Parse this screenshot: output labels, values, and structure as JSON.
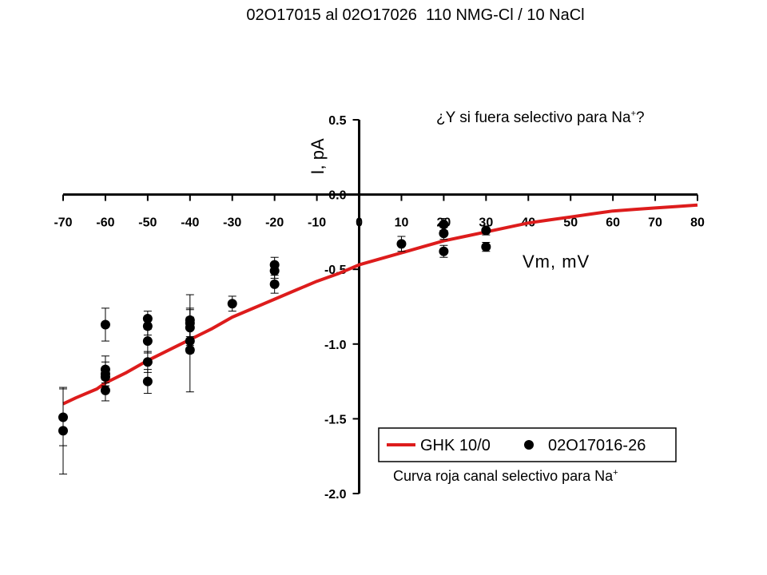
{
  "title": "02O17015 al 02O17026  110 NMG-Cl / 10 NaCl",
  "annotations": {
    "question": {
      "text": "¿Y si fuera selectivo para Na",
      "sup": "+",
      "suffix": "?"
    },
    "caption": {
      "text": "Curva roja canal selectivo para Na",
      "sup": "+"
    }
  },
  "chart_data": {
    "type": "scatter",
    "xlabel": "Vm, mV",
    "ylabel": "I, pA",
    "xlim": [
      -70,
      80
    ],
    "ylim": [
      -2.0,
      0.5
    ],
    "x_ticks": [
      -70,
      -60,
      -50,
      -40,
      -30,
      -20,
      -10,
      0,
      10,
      20,
      30,
      40,
      50,
      60,
      70,
      80
    ],
    "x_tick_labels": [
      "-70",
      "-60",
      "-50",
      "-40",
      "-30",
      "-20",
      "-10",
      "0",
      "10",
      "20",
      "30",
      "40",
      "50",
      "60",
      "70",
      "80"
    ],
    "y_ticks": [
      0.5,
      0.0,
      -0.5,
      -1.0,
      -1.5,
      -2.0
    ],
    "y_tick_labels": [
      "0.5",
      "0.0",
      "-0.5",
      "-1.0",
      "-1.5",
      "-2.0"
    ],
    "legend_position": "bottom-right",
    "series": [
      {
        "name": "GHK 10/0",
        "kind": "line",
        "color": "#dd1c1c",
        "points": [
          [
            -70,
            -1.4
          ],
          [
            -67,
            -1.36
          ],
          [
            -62,
            -1.3
          ],
          [
            -60,
            -1.26
          ],
          [
            -55,
            -1.19
          ],
          [
            -50,
            -1.11
          ],
          [
            -45,
            -1.04
          ],
          [
            -40,
            -0.97
          ],
          [
            -35,
            -0.9
          ],
          [
            -30,
            -0.82
          ],
          [
            -25,
            -0.76
          ],
          [
            -20,
            -0.7
          ],
          [
            -15,
            -0.64
          ],
          [
            -10,
            -0.58
          ],
          [
            -5,
            -0.53
          ],
          [
            0,
            -0.47
          ],
          [
            5,
            -0.43
          ],
          [
            10,
            -0.39
          ],
          [
            15,
            -0.35
          ],
          [
            20,
            -0.31
          ],
          [
            25,
            -0.28
          ],
          [
            30,
            -0.25
          ],
          [
            35,
            -0.22
          ],
          [
            40,
            -0.19
          ],
          [
            45,
            -0.17
          ],
          [
            50,
            -0.15
          ],
          [
            55,
            -0.13
          ],
          [
            60,
            -0.11
          ],
          [
            65,
            -0.1
          ],
          [
            70,
            -0.09
          ],
          [
            75,
            -0.08
          ],
          [
            80,
            -0.07
          ]
        ]
      },
      {
        "name": "02O17016-26",
        "kind": "scatter",
        "color": "#000000",
        "points": [
          {
            "x": -70,
            "y": -1.49,
            "err": 0.19
          },
          {
            "x": -70,
            "y": -1.58,
            "err": 0.29
          },
          {
            "x": -60,
            "y": -0.87,
            "err": 0.11
          },
          {
            "x": -60,
            "y": -1.17,
            "err": 0.09
          },
          {
            "x": -60,
            "y": -1.2,
            "err": 0.08
          },
          {
            "x": -60,
            "y": -1.22,
            "err": 0.06
          },
          {
            "x": -60,
            "y": -1.31,
            "err": 0.07
          },
          {
            "x": -50,
            "y": -0.83,
            "err": 0.05
          },
          {
            "x": -50,
            "y": -0.88,
            "err": 0.06
          },
          {
            "x": -50,
            "y": -0.98,
            "err": 0.08
          },
          {
            "x": -50,
            "y": -1.12,
            "err": 0.07
          },
          {
            "x": -50,
            "y": -1.25,
            "err": 0.08
          },
          {
            "x": -40,
            "y": -0.84,
            "err": 0.17
          },
          {
            "x": -40,
            "y": -0.86,
            "err": 0.09
          },
          {
            "x": -40,
            "y": -0.89,
            "err": 0.07
          },
          {
            "x": -40,
            "y": -0.98,
            "err": 0.08
          },
          {
            "x": -40,
            "y": -1.04,
            "err": 0.28
          },
          {
            "x": -30,
            "y": -0.73,
            "err": 0.05
          },
          {
            "x": -20,
            "y": -0.47,
            "err": 0.05
          },
          {
            "x": -20,
            "y": -0.51,
            "err": 0.05
          },
          {
            "x": -20,
            "y": -0.6,
            "err": 0.06
          },
          {
            "x": 10,
            "y": -0.33,
            "err": 0.05
          },
          {
            "x": 20,
            "y": -0.2,
            "err": 0.04
          },
          {
            "x": 20,
            "y": -0.26,
            "err": 0.04
          },
          {
            "x": 20,
            "y": -0.38,
            "err": 0.04
          },
          {
            "x": 30,
            "y": -0.24,
            "err": 0.03
          },
          {
            "x": 30,
            "y": -0.35,
            "err": 0.03
          }
        ]
      }
    ]
  }
}
